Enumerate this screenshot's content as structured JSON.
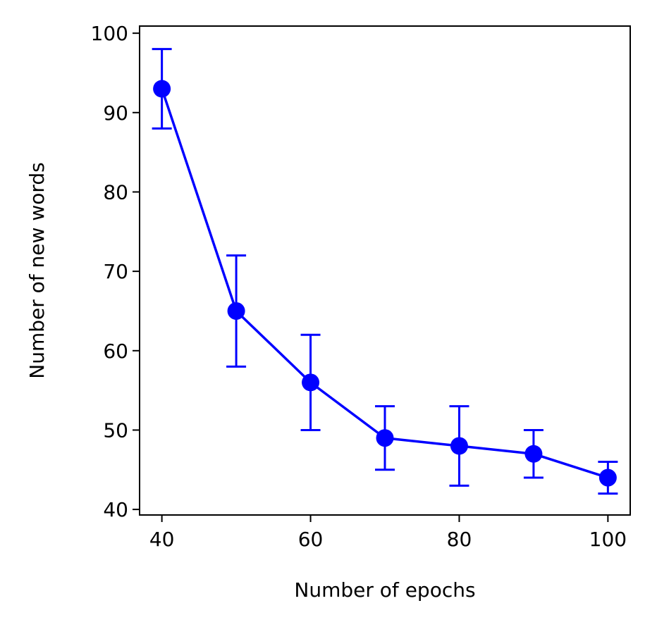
{
  "chart_data": {
    "type": "line",
    "title": "",
    "xlabel": "Number of epochs",
    "ylabel": "Number of new words",
    "xlim": [
      37,
      103
    ],
    "ylim": [
      39.3,
      100.9
    ],
    "xticks": [
      40,
      60,
      80,
      100
    ],
    "yticks": [
      40,
      50,
      60,
      70,
      80,
      90,
      100
    ],
    "grid": false,
    "legend": "none",
    "series": [
      {
        "color": "#0000ff",
        "x": [
          40,
          50,
          60,
          70,
          80,
          90,
          100
        ],
        "y": [
          93,
          65,
          56,
          49,
          48,
          47,
          44
        ],
        "y_err_low": [
          88,
          58,
          50,
          45,
          43,
          44,
          42
        ],
        "y_err_high": [
          98,
          72,
          62,
          53,
          53,
          50,
          46
        ]
      }
    ]
  }
}
